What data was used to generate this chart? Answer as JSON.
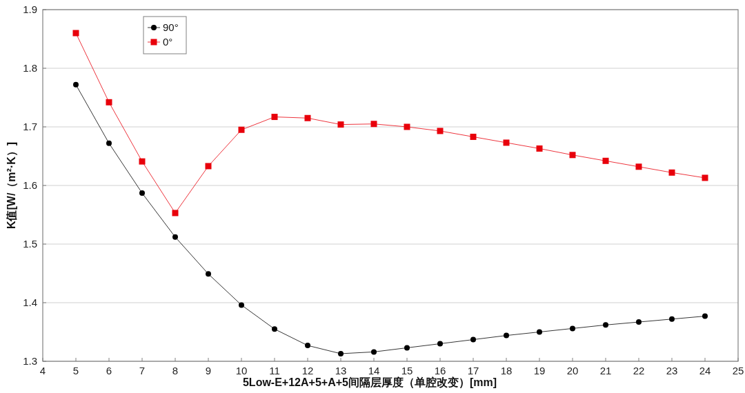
{
  "chart_data": {
    "type": "line",
    "xlabel": "5Low-E+12A+5+A+5间隔层厚度（单腔改变）[mm]",
    "ylabel": "K值[W/（m²·K）]",
    "x": [
      5,
      6,
      7,
      8,
      9,
      10,
      11,
      12,
      13,
      14,
      15,
      16,
      17,
      18,
      19,
      20,
      21,
      22,
      23,
      24
    ],
    "series": [
      {
        "name": "90°",
        "color": "#000000",
        "marker": "circle",
        "values": [
          1.772,
          1.672,
          1.587,
          1.512,
          1.449,
          1.396,
          1.355,
          1.327,
          1.313,
          1.316,
          1.323,
          1.33,
          1.337,
          1.344,
          1.35,
          1.356,
          1.362,
          1.367,
          1.372,
          1.377
        ]
      },
      {
        "name": "0°",
        "color": "#e8000b",
        "marker": "square",
        "values": [
          1.86,
          1.742,
          1.641,
          1.553,
          1.633,
          1.695,
          1.717,
          1.715,
          1.704,
          1.705,
          1.7,
          1.693,
          1.683,
          1.673,
          1.663,
          1.652,
          1.642,
          1.632,
          1.622,
          1.613
        ]
      }
    ],
    "xlim": [
      4,
      25
    ],
    "ylim": [
      1.3,
      1.9
    ],
    "xticks": [
      4,
      5,
      6,
      7,
      8,
      9,
      10,
      11,
      12,
      13,
      14,
      15,
      16,
      17,
      18,
      19,
      20,
      21,
      22,
      23,
      24,
      25
    ],
    "yticks": [
      1.3,
      1.4,
      1.5,
      1.6,
      1.7,
      1.8,
      1.9
    ],
    "grid": "y",
    "legend": "top left"
  }
}
